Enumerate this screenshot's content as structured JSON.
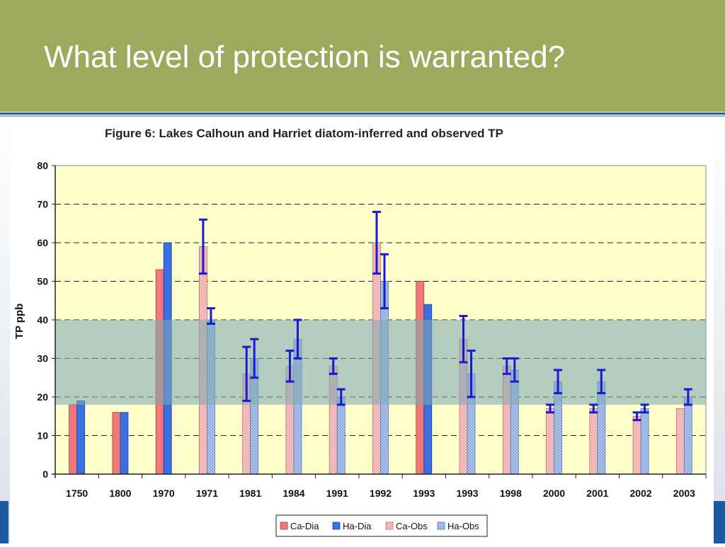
{
  "slide": {
    "title": "What level of protection is warranted?"
  },
  "colors": {
    "header_bg": "#9caa5e",
    "plot_bg": "#ffffcc",
    "band": "#7fa8b4",
    "ca_dia": "#f07878",
    "ha_dia": "#3a6fe0",
    "ca_obs": "#f6b9b9",
    "ha_obs": "#a9c3ee",
    "error_bar": "#1a1ad0"
  },
  "chart_data": {
    "type": "bar",
    "title": "Figure 6:  Lakes Calhoun and Harriet diatom-inferred and observed TP",
    "xlabel": "",
    "ylabel": "TP ppb",
    "ylim": [
      0,
      80
    ],
    "yticks": [
      0,
      10,
      20,
      30,
      40,
      50,
      60,
      70,
      80
    ],
    "grid": "dashed horizontal",
    "legend_position": "bottom",
    "band": {
      "from": 18,
      "to": 40
    },
    "categories": [
      "1750",
      "1800",
      "1970",
      "1971",
      "1981",
      "1984",
      "1991",
      "1992",
      "1993",
      "1993",
      "1998",
      "2000",
      "2001",
      "2002",
      "2003"
    ],
    "series": [
      {
        "name": "Ca-Dia",
        "pattern": "solid",
        "values": [
          18,
          16,
          53,
          null,
          null,
          null,
          null,
          null,
          50,
          null,
          null,
          null,
          null,
          null,
          null
        ]
      },
      {
        "name": "Ha-Dia",
        "pattern": "solid",
        "values": [
          19,
          16,
          60,
          null,
          null,
          null,
          null,
          null,
          44,
          null,
          null,
          null,
          null,
          null,
          null
        ]
      },
      {
        "name": "Ca-Obs",
        "pattern": "hatched",
        "values": [
          null,
          null,
          null,
          59,
          26,
          28,
          28,
          60,
          null,
          35,
          28,
          17,
          17,
          15,
          17
        ],
        "error_low": [
          null,
          null,
          null,
          52,
          19,
          24,
          26,
          52,
          null,
          29,
          26,
          16,
          16,
          14,
          null
        ],
        "error_high": [
          null,
          null,
          null,
          66,
          33,
          32,
          30,
          68,
          null,
          41,
          30,
          18,
          18,
          16,
          null
        ]
      },
      {
        "name": "Ha-Obs",
        "pattern": "hatched",
        "values": [
          null,
          null,
          null,
          40,
          30,
          35,
          20,
          50,
          null,
          26,
          27,
          24,
          24,
          17,
          20
        ],
        "error_low": [
          null,
          null,
          null,
          39,
          25,
          30,
          18,
          43,
          null,
          20,
          24,
          21,
          21,
          16,
          18
        ],
        "error_high": [
          null,
          null,
          null,
          43,
          35,
          40,
          22,
          57,
          null,
          32,
          30,
          27,
          27,
          18,
          22
        ]
      }
    ]
  }
}
